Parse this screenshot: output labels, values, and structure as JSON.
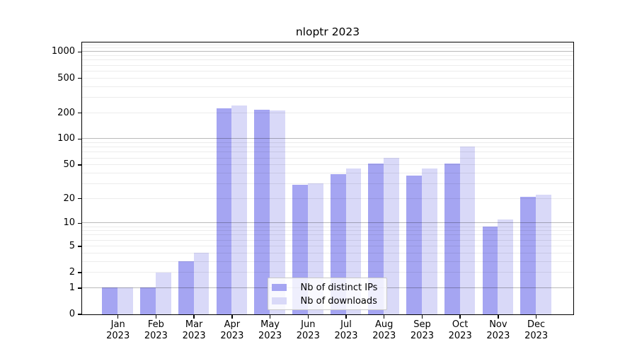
{
  "chart_data": {
    "type": "bar",
    "title": "nloptr 2023",
    "y_scale": "log(1+x)",
    "grid": true,
    "categories": [
      "Jan 2023",
      "Feb 2023",
      "Mar 2023",
      "Apr 2023",
      "May 2023",
      "Jun 2023",
      "Jul 2023",
      "Aug 2023",
      "Sep 2023",
      "Oct 2023",
      "Nov 2023",
      "Dec 2023"
    ],
    "month_labels": [
      "Jan",
      "Feb",
      "Mar",
      "Apr",
      "May",
      "Jun",
      "Jul",
      "Aug",
      "Sep",
      "Oct",
      "Nov",
      "Dec"
    ],
    "year_label": "2023",
    "series": [
      {
        "name": "Nb of distinct IPs",
        "color": "#a5a5f2",
        "values": [
          1,
          1,
          3,
          222,
          214,
          29,
          39,
          52,
          37,
          52,
          9,
          21
        ]
      },
      {
        "name": "Nb of downloads",
        "color": "#d9d9f8",
        "values": [
          1,
          2,
          4,
          240,
          211,
          30,
          45,
          60,
          45,
          81,
          11,
          22
        ]
      }
    ],
    "y_ticks": [
      0,
      1,
      2,
      5,
      10,
      20,
      50,
      100,
      200,
      500,
      1000
    ],
    "y_major_gridlines": [
      1,
      10,
      100,
      1000
    ],
    "ylim": [
      0,
      1270
    ],
    "legend_position": "lower center",
    "xlabel": "",
    "ylabel": ""
  },
  "colors": {
    "ip_bar": "#a5a5f2",
    "downloads_bar": "#d9d9f8",
    "major_grid": "#bfbfbf",
    "minor_grid": "#ececec",
    "axis": "#000000",
    "legend_border": "#c9c9c9"
  }
}
